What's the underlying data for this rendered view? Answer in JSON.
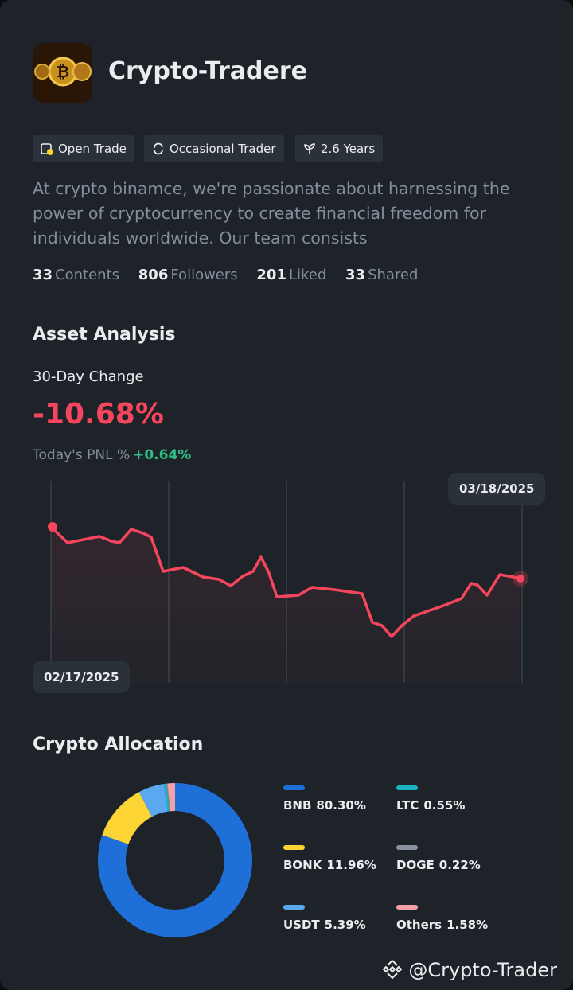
{
  "header": {
    "title": "Crypto-Tradere"
  },
  "badges": [
    "Open Trade",
    "Occasional Trader",
    "2.6 Years"
  ],
  "description": "At crypto binamce, we're passionate about harnessing the power of cryptocurrency to create financial freedom for individuals worldwide. Our team consists",
  "stats": [
    {
      "value": 33,
      "label": "Contents"
    },
    {
      "value": 806,
      "label": "Followers"
    },
    {
      "value": 201,
      "label": "Liked"
    },
    {
      "value": 33,
      "label": "Shared"
    }
  ],
  "asset_analysis": {
    "title": "Asset Analysis",
    "change_label": "30-Day Change",
    "change_value": "-10.68%",
    "pnl_label": "Today's PNL %",
    "pnl_value": "+0.64%",
    "start_date": "02/17/2025",
    "end_date": "03/18/2025"
  },
  "allocation": {
    "title": "Crypto Allocation",
    "categories": [
      "BNB",
      "BONK",
      "USDT",
      "LTC",
      "DOGE",
      "Others"
    ],
    "values": [
      80.3,
      11.96,
      5.39,
      0.55,
      0.22,
      1.58
    ],
    "value_labels": [
      "80.30%",
      "11.96%",
      "5.39%",
      "0.55%",
      "0.22%",
      "1.58%"
    ],
    "colors": [
      "#1f6fd8",
      "#fcd535",
      "#5aa8f0",
      "#1bb3c0",
      "#8a919e",
      "#f4a0a8"
    ]
  },
  "footer": "@Crypto-Trader"
}
